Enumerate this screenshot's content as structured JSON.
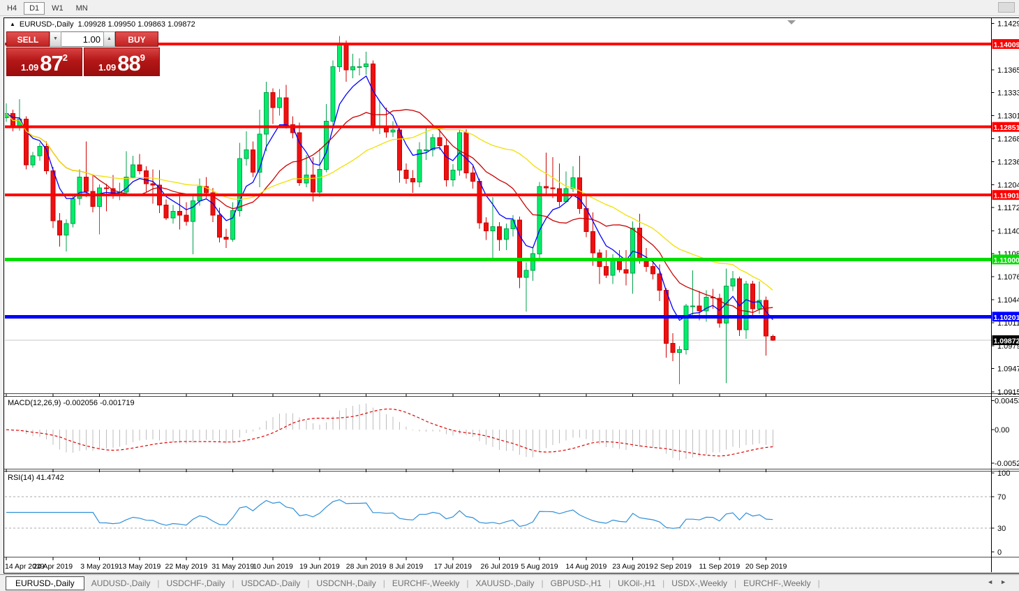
{
  "toolbar": {
    "timeframes": [
      {
        "label": "H4",
        "active": false
      },
      {
        "label": "D1",
        "active": true
      },
      {
        "label": "W1",
        "active": false
      },
      {
        "label": "MN",
        "active": false
      }
    ]
  },
  "chart": {
    "symbol_period": "EURUSD-,Daily",
    "ohlc_text": "1.09928 1.09950 1.09863 1.09872",
    "collapse_icon": "▲"
  },
  "trade_panel": {
    "sell_label": "SELL",
    "buy_label": "BUY",
    "volume": "1.00",
    "spin_down": "▼",
    "spin_up": "▲",
    "sell_price": {
      "prefix": "1.09",
      "big": "87",
      "sup": "2"
    },
    "buy_price": {
      "prefix": "1.09",
      "big": "88",
      "sup": "9"
    }
  },
  "colors": {
    "bull_fill": "#00ee6a",
    "bull_stroke": "#00a04a",
    "bear_fill": "#ee1111",
    "bear_stroke": "#cc0000",
    "ma_fast": "#0000ff",
    "ma_mid": "#cc0000",
    "ma_slow": "#f0e000",
    "resistance_red": "#ff0000",
    "support_green": "#00dd00",
    "level_blue": "#0000ff",
    "bid_line_gray": "#c8c8c8",
    "macd_bar": "#bdbdbd",
    "macd_signal": "#e00000",
    "rsi_line": "#2f8fd8",
    "badge_text": "#ffffff",
    "bid_badge_bg": "#000000",
    "axis_text": "#000000",
    "dashed_level": "#a8a8a8"
  },
  "chart_data": {
    "type": "candlestick",
    "symbol": "EURUSD-",
    "timeframe": "Daily",
    "title": "EURUSD-,Daily 1.09928 1.09950 1.09863 1.09872",
    "candles": [
      [
        1.1298,
        1.1318,
        1.1292,
        1.1304
      ],
      [
        1.1304,
        1.1309,
        1.1279,
        1.1284
      ],
      [
        1.1284,
        1.1324,
        1.128,
        1.1296
      ],
      [
        1.1296,
        1.13,
        1.1226,
        1.1232
      ],
      [
        1.1232,
        1.125,
        1.1228,
        1.1245
      ],
      [
        1.1245,
        1.1263,
        1.1238,
        1.1258
      ],
      [
        1.1258,
        1.1265,
        1.1219,
        1.1224
      ],
      [
        1.1224,
        1.1229,
        1.1144,
        1.1154
      ],
      [
        1.1154,
        1.1165,
        1.1118,
        1.1134
      ],
      [
        1.1134,
        1.1156,
        1.1111,
        1.115
      ],
      [
        1.115,
        1.119,
        1.1145,
        1.1185
      ],
      [
        1.1185,
        1.1226,
        1.1176,
        1.1215
      ],
      [
        1.1215,
        1.1265,
        1.1187,
        1.1195
      ],
      [
        1.1195,
        1.1219,
        1.1166,
        1.1174
      ],
      [
        1.1174,
        1.1205,
        1.1135,
        1.12
      ],
      [
        1.12,
        1.1206,
        1.1167,
        1.1199
      ],
      [
        1.1199,
        1.1218,
        1.1185,
        1.119
      ],
      [
        1.119,
        1.1207,
        1.1183,
        1.1194
      ],
      [
        1.1194,
        1.1251,
        1.1188,
        1.1215
      ],
      [
        1.1215,
        1.1245,
        1.1213,
        1.1232
      ],
      [
        1.1232,
        1.1247,
        1.1219,
        1.1224
      ],
      [
        1.1224,
        1.123,
        1.1194,
        1.1206
      ],
      [
        1.1206,
        1.1226,
        1.1178,
        1.1204
      ],
      [
        1.1204,
        1.1225,
        1.1165,
        1.1176
      ],
      [
        1.1176,
        1.1184,
        1.1155,
        1.1158
      ],
      [
        1.1158,
        1.1176,
        1.115,
        1.1167
      ],
      [
        1.1167,
        1.1188,
        1.1142,
        1.1162
      ],
      [
        1.1162,
        1.118,
        1.1147,
        1.1153
      ],
      [
        1.1153,
        1.1188,
        1.1107,
        1.1182
      ],
      [
        1.1182,
        1.1213,
        1.1175,
        1.1202
      ],
      [
        1.1202,
        1.1215,
        1.1186,
        1.1193
      ],
      [
        1.1193,
        1.12,
        1.1152,
        1.1162
      ],
      [
        1.1162,
        1.1172,
        1.1124,
        1.1131
      ],
      [
        1.1131,
        1.1143,
        1.1116,
        1.1128
      ],
      [
        1.1128,
        1.118,
        1.1125,
        1.1168
      ],
      [
        1.1168,
        1.1263,
        1.116,
        1.1241
      ],
      [
        1.1241,
        1.1279,
        1.1231,
        1.1253
      ],
      [
        1.1253,
        1.1265,
        1.1215,
        1.1222
      ],
      [
        1.1222,
        1.1309,
        1.1201,
        1.1275
      ],
      [
        1.1275,
        1.1348,
        1.1251,
        1.1333
      ],
      [
        1.1333,
        1.1339,
        1.1289,
        1.1312
      ],
      [
        1.1312,
        1.1338,
        1.1301,
        1.1326
      ],
      [
        1.1326,
        1.1344,
        1.1283,
        1.1288
      ],
      [
        1.1288,
        1.13,
        1.1269,
        1.1277
      ],
      [
        1.1277,
        1.1291,
        1.1203,
        1.1207
      ],
      [
        1.1207,
        1.1246,
        1.1201,
        1.1218
      ],
      [
        1.1218,
        1.1243,
        1.1181,
        1.1194
      ],
      [
        1.1194,
        1.1255,
        1.1187,
        1.1226
      ],
      [
        1.1226,
        1.1317,
        1.1222,
        1.1293
      ],
      [
        1.1293,
        1.1378,
        1.1283,
        1.1369
      ],
      [
        1.1369,
        1.1412,
        1.1362,
        1.14
      ],
      [
        1.14,
        1.1406,
        1.1348,
        1.1365
      ],
      [
        1.1365,
        1.1387,
        1.1353,
        1.1369
      ],
      [
        1.1369,
        1.1381,
        1.1357,
        1.1369
      ],
      [
        1.1369,
        1.139,
        1.1358,
        1.1373
      ],
      [
        1.1373,
        1.1378,
        1.1279,
        1.1285
      ],
      [
        1.1285,
        1.1322,
        1.1275,
        1.1285
      ],
      [
        1.1285,
        1.1312,
        1.127,
        1.1278
      ],
      [
        1.1278,
        1.1293,
        1.1271,
        1.1281
      ],
      [
        1.1281,
        1.1286,
        1.1207,
        1.1225
      ],
      [
        1.1225,
        1.1234,
        1.1206,
        1.1213
      ],
      [
        1.1213,
        1.1225,
        1.1193,
        1.1208
      ],
      [
        1.1208,
        1.1264,
        1.1201,
        1.1253
      ],
      [
        1.1253,
        1.1286,
        1.1239,
        1.1253
      ],
      [
        1.1253,
        1.1275,
        1.1244,
        1.127
      ],
      [
        1.127,
        1.1282,
        1.1253,
        1.1259
      ],
      [
        1.1259,
        1.1268,
        1.1202,
        1.1211
      ],
      [
        1.1211,
        1.1233,
        1.1202,
        1.1225
      ],
      [
        1.1225,
        1.1282,
        1.1217,
        1.1277
      ],
      [
        1.1277,
        1.1282,
        1.1213,
        1.1221
      ],
      [
        1.1221,
        1.123,
        1.1199,
        1.1209
      ],
      [
        1.1209,
        1.1213,
        1.1143,
        1.1151
      ],
      [
        1.1151,
        1.1159,
        1.1127,
        1.114
      ],
      [
        1.114,
        1.1187,
        1.1101,
        1.1146
      ],
      [
        1.1146,
        1.1152,
        1.1112,
        1.1128
      ],
      [
        1.1128,
        1.115,
        1.1113,
        1.1143
      ],
      [
        1.1143,
        1.1162,
        1.1132,
        1.1155
      ],
      [
        1.1155,
        1.116,
        1.106,
        1.1075
      ],
      [
        1.1075,
        1.1096,
        1.1027,
        1.1085
      ],
      [
        1.1085,
        1.1116,
        1.107,
        1.1108
      ],
      [
        1.1108,
        1.1208,
        1.1101,
        1.1202
      ],
      [
        1.1202,
        1.1249,
        1.1192,
        1.12
      ],
      [
        1.12,
        1.1243,
        1.1186,
        1.1199
      ],
      [
        1.1199,
        1.1234,
        1.1174,
        1.1181
      ],
      [
        1.1181,
        1.1223,
        1.1179,
        1.1199
      ],
      [
        1.1199,
        1.123,
        1.1194,
        1.1214
      ],
      [
        1.1214,
        1.1245,
        1.1164,
        1.1171
      ],
      [
        1.1171,
        1.1192,
        1.1131,
        1.1139
      ],
      [
        1.1139,
        1.1166,
        1.1091,
        1.1109
      ],
      [
        1.1109,
        1.1114,
        1.1066,
        1.109
      ],
      [
        1.109,
        1.1113,
        1.1074,
        1.1078
      ],
      [
        1.1078,
        1.1107,
        1.1066,
        1.11
      ],
      [
        1.11,
        1.1113,
        1.1082,
        1.1086
      ],
      [
        1.1086,
        1.1113,
        1.1064,
        1.1081
      ],
      [
        1.1081,
        1.1153,
        1.1052,
        1.1144
      ],
      [
        1.1144,
        1.1164,
        1.1094,
        1.1101
      ],
      [
        1.1101,
        1.1116,
        1.1083,
        1.109
      ],
      [
        1.109,
        1.1098,
        1.1072,
        1.108
      ],
      [
        1.108,
        1.1093,
        1.1042,
        1.1057
      ],
      [
        1.1057,
        1.106,
        1.0963,
        1.0983
      ],
      [
        1.0983,
        1.0997,
        1.0958,
        1.097
      ],
      [
        1.097,
        1.0979,
        1.0926,
        1.0974
      ],
      [
        1.0974,
        1.1038,
        1.0967,
        1.1035
      ],
      [
        1.1035,
        1.1085,
        1.1023,
        1.1035
      ],
      [
        1.1035,
        1.1056,
        1.1015,
        1.1028
      ],
      [
        1.1028,
        1.1057,
        1.1013,
        1.1047
      ],
      [
        1.1047,
        1.1059,
        1.1031,
        1.1046
      ],
      [
        1.1046,
        1.1052,
        1.1005,
        1.1011
      ],
      [
        1.1011,
        1.1087,
        1.0927,
        1.1063
      ],
      [
        1.1063,
        1.1084,
        1.1056,
        1.1073
      ],
      [
        1.1073,
        1.1076,
        1.0993,
        1.1002
      ],
      [
        1.1002,
        1.107,
        1.0989,
        1.1066
      ],
      [
        1.1066,
        1.107,
        1.1022,
        1.1031
      ],
      [
        1.1031,
        1.1069,
        1.1024,
        1.1043
      ],
      [
        1.1043,
        1.1048,
        1.0966,
        1.0993
      ],
      [
        1.09928,
        1.0995,
        1.09863,
        1.09872
      ]
    ],
    "moving_averages": [
      {
        "name": "fast",
        "period": 6,
        "color_key": "ma_fast"
      },
      {
        "name": "mid",
        "period": 14,
        "color_key": "ma_mid"
      },
      {
        "name": "slow",
        "period": 30,
        "color_key": "ma_slow"
      }
    ],
    "hlines": [
      {
        "price": 1.14009,
        "label": "1.14009",
        "color_key": "resistance_red",
        "width": 4
      },
      {
        "price": 1.12851,
        "label": "1.12851",
        "color_key": "resistance_red",
        "width": 4
      },
      {
        "price": 1.11901,
        "label": "1.11901",
        "color_key": "resistance_red",
        "width": 4
      },
      {
        "price": 1.11,
        "label": "1.11000",
        "color_key": "support_green",
        "width": 5
      },
      {
        "price": 1.10201,
        "label": "1.10201",
        "color_key": "level_blue",
        "width": 5
      }
    ],
    "bid_line": {
      "price": 1.09872,
      "label": "1.09872"
    },
    "price_axis_ticks": [
      "1.14295",
      "1.13650",
      "1.13330",
      "1.13010",
      "1.12685",
      "1.12365",
      "1.12045",
      "1.11725",
      "1.11400",
      "1.11080",
      "1.10760",
      "1.10440",
      "1.10115",
      "1.09795",
      "1.09475",
      "1.09150"
    ],
    "date_ticks": [
      {
        "index": 0,
        "label": "14 Apr 2019"
      },
      {
        "index": 7,
        "label": "24 Apr 2019"
      },
      {
        "index": 14,
        "label": "3 May 2019"
      },
      {
        "index": 20,
        "label": "13 May 2019"
      },
      {
        "index": 27,
        "label": "22 May 2019"
      },
      {
        "index": 34,
        "label": "31 May 2019"
      },
      {
        "index": 40,
        "label": "10 Jun 2019"
      },
      {
        "index": 47,
        "label": "19 Jun 2019"
      },
      {
        "index": 54,
        "label": "28 Jun 2019"
      },
      {
        "index": 60,
        "label": "8 Jul 2019"
      },
      {
        "index": 67,
        "label": "17 Jul 2019"
      },
      {
        "index": 74,
        "label": "26 Jul 2019"
      },
      {
        "index": 80,
        "label": "5 Aug 2019"
      },
      {
        "index": 87,
        "label": "14 Aug 2019"
      },
      {
        "index": 94,
        "label": "23 Aug 2019"
      },
      {
        "index": 100,
        "label": "2 Sep 2019"
      },
      {
        "index": 107,
        "label": "11 Sep 2019"
      },
      {
        "index": 114,
        "label": "20 Sep 2019"
      }
    ],
    "macd": {
      "title": "MACD(12,26,9) -0.002056 -0.001719",
      "fast": 12,
      "slow": 26,
      "signal": 9,
      "value_main": -0.002056,
      "value_signal": -0.001719,
      "axis_labels": [
        {
          "label": "0.004536",
          "value": 0.004536
        },
        {
          "label": "0.00",
          "value": 0
        },
        {
          "label": "-0.00520",
          "value": -0.0052
        }
      ]
    },
    "rsi": {
      "title": "RSI(14) 41.4742",
      "period": 14,
      "value": 41.4742,
      "axis_labels": [
        {
          "label": "100",
          "value": 100
        },
        {
          "label": "70",
          "value": 70,
          "dashed": true
        },
        {
          "label": "30",
          "value": 30,
          "dashed": true
        },
        {
          "label": "0",
          "value": 0
        }
      ]
    }
  },
  "tabs": {
    "items": [
      {
        "label": "EURUSD-,Daily",
        "active": true
      },
      {
        "label": "AUDUSD-,Daily",
        "active": false
      },
      {
        "label": "USDCHF-,Daily",
        "active": false
      },
      {
        "label": "USDCAD-,Daily",
        "active": false
      },
      {
        "label": "USDCNH-,Daily",
        "active": false
      },
      {
        "label": "EURCHF-,Weekly",
        "active": false
      },
      {
        "label": "XAUUSD-,Daily",
        "active": false
      },
      {
        "label": "GBPUSD-,H1",
        "active": false
      },
      {
        "label": "UKOil-,H1",
        "active": false
      },
      {
        "label": "USDX-,Weekly",
        "active": false
      },
      {
        "label": "EURCHF-,Weekly",
        "active": false
      }
    ],
    "scroll_left": "◄",
    "scroll_right": "►"
  }
}
